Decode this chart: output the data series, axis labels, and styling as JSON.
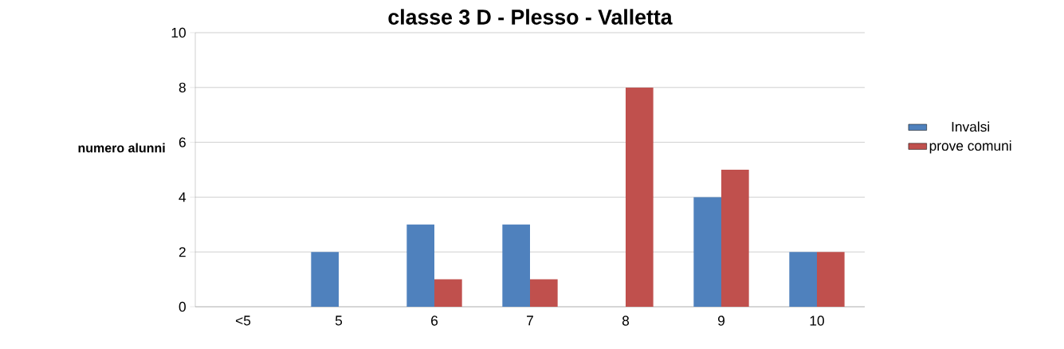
{
  "chart_data": {
    "type": "bar",
    "title": "classe 3 D - Plesso - Valletta",
    "ylabel": "numero alunni",
    "categories": [
      "<5",
      "5",
      "6",
      "7",
      "8",
      "9",
      "10"
    ],
    "series": [
      {
        "name": "Invalsi",
        "color": "#4f81bd",
        "values": [
          0,
          2,
          3,
          3,
          0,
          4,
          2
        ]
      },
      {
        "name": "prove comuni",
        "color": "#c0504d",
        "values": [
          0,
          0,
          1,
          1,
          8,
          5,
          2
        ]
      }
    ],
    "ylim": [
      0,
      10
    ],
    "yticks": [
      0,
      2,
      4,
      6,
      8,
      10
    ],
    "grid": "y",
    "legend": "right"
  }
}
